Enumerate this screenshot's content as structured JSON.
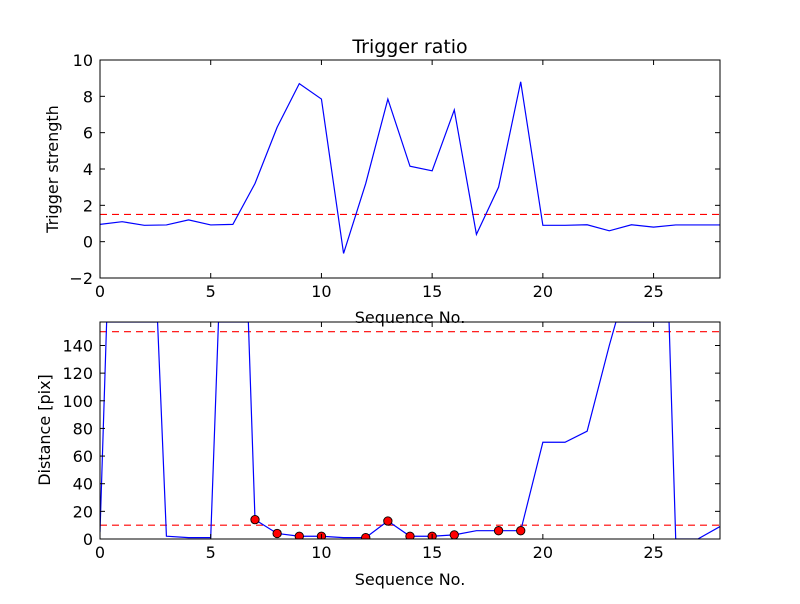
{
  "chart_data": [
    {
      "type": "line",
      "title": "Trigger ratio",
      "xlabel": "Sequence No.",
      "ylabel": "Trigger strength",
      "xlim": [
        0,
        28
      ],
      "ylim": [
        -2,
        10
      ],
      "xticks": [
        "0",
        "5",
        "10",
        "15",
        "20",
        "25"
      ],
      "yticks": [
        "−2",
        "0",
        "2",
        "4",
        "6",
        "8",
        "10"
      ],
      "grid": false,
      "series": [
        {
          "x": [
            0,
            1,
            2,
            3,
            4,
            5,
            6,
            7,
            8,
            9,
            10,
            11,
            12,
            13,
            14,
            15,
            16,
            17,
            18,
            19,
            20,
            21,
            22,
            23,
            24,
            25,
            26,
            27,
            28
          ],
          "values": [
            0.95,
            1.1,
            0.9,
            0.92,
            1.2,
            0.92,
            0.95,
            3.2,
            6.3,
            8.7,
            7.85,
            -0.65,
            3.2,
            7.85,
            4.15,
            3.9,
            7.25,
            0.4,
            3.0,
            8.8,
            0.9,
            0.9,
            0.93,
            0.6,
            0.93,
            0.8,
            0.92,
            0.92,
            0.92
          ],
          "color": "#0000ff"
        }
      ],
      "threshold": {
        "value": 1.5,
        "color": "#ff0000",
        "style": "dashed"
      }
    },
    {
      "type": "line",
      "title": "",
      "xlabel": "Sequence No.",
      "ylabel": "Distance [pix]",
      "xlim": [
        0,
        28
      ],
      "ylim": [
        0,
        157
      ],
      "xticks": [
        "0",
        "5",
        "10",
        "15",
        "20",
        "25"
      ],
      "yticks": [
        "0",
        "20",
        "40",
        "60",
        "80",
        "100",
        "120",
        "140"
      ],
      "grid": false,
      "series": [
        {
          "x": [
            0,
            0.3,
            2.6,
            3,
            4,
            5,
            5.35,
            6.7,
            7,
            8,
            9,
            10,
            11,
            12,
            13,
            14,
            15,
            16,
            17,
            18,
            19,
            20,
            21,
            22,
            23,
            23.3,
            25.7,
            26,
            27,
            28
          ],
          "values": [
            5,
            157,
            157,
            2,
            1,
            1,
            157,
            157,
            14,
            4,
            2,
            2,
            1,
            1,
            13,
            2,
            2,
            3,
            6,
            6,
            6,
            70,
            70,
            78,
            140,
            157,
            157,
            0,
            0,
            9
          ],
          "color": "#0000ff"
        }
      ],
      "markers": {
        "x": [
          7,
          8,
          9,
          10,
          12,
          13,
          14,
          15,
          16,
          18,
          19
        ],
        "values": [
          14,
          4,
          2,
          2,
          1,
          13,
          2,
          2,
          3,
          6,
          6
        ],
        "color": "#ff0000"
      },
      "thresholds": [
        {
          "value": 150,
          "color": "#ff0000",
          "style": "dashed"
        },
        {
          "value": 10,
          "color": "#ff0000",
          "style": "dashed"
        }
      ]
    }
  ]
}
